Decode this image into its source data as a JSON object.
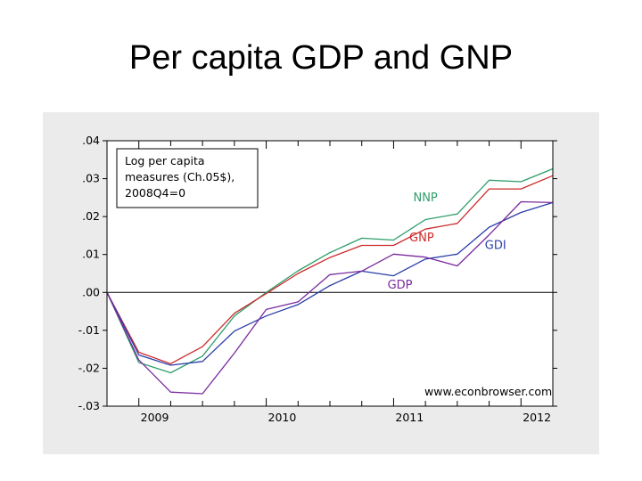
{
  "slide": {
    "title": "Per capita GDP and GNP"
  },
  "chart_data": {
    "type": "line",
    "title": "",
    "xlabel": "",
    "ylabel": "",
    "ylim": [
      -0.03,
      0.04
    ],
    "y_ticks": [
      0.04,
      0.03,
      0.02,
      0.01,
      0.0,
      -0.01,
      -0.02,
      -0.03
    ],
    "y_tick_labels": [
      ".04",
      ".03",
      ".02",
      ".01",
      ".00",
      "-.01",
      "-.02",
      "-.03"
    ],
    "x_ticks": [
      2009.0,
      2010.0,
      2011.0,
      2012.0
    ],
    "x_tick_labels": [
      "2009",
      "2010",
      "2011",
      "2012"
    ],
    "xlim": [
      2008.75,
      2012.25
    ],
    "grid": false,
    "legend_box": "top-left",
    "legend_lines": [
      "Log per capita",
      "measures (Ch.05$),",
      "2008Q4=0"
    ],
    "watermark": "www.econbrowser.com",
    "x": [
      "2008Q4",
      "2009Q1",
      "2009Q2",
      "2009Q3",
      "2009Q4",
      "2010Q1",
      "2010Q2",
      "2010Q3",
      "2010Q4",
      "2011Q1",
      "2011Q2",
      "2011Q3",
      "2011Q4",
      "2012Q1",
      "2012Q2"
    ],
    "series": [
      {
        "name": "NNP",
        "color": "#2e9e6a",
        "values": [
          0.0,
          -0.0185,
          -0.0212,
          -0.0168,
          -0.0062,
          0.0,
          0.0057,
          0.0105,
          0.0143,
          0.0138,
          0.0192,
          0.0207,
          0.0296,
          0.0292,
          0.0326
        ]
      },
      {
        "name": "GNP",
        "color": "#cc2b2b",
        "values": [
          0.0,
          -0.0158,
          -0.0188,
          -0.0143,
          -0.0055,
          -0.0003,
          0.005,
          0.0092,
          0.0124,
          0.0124,
          0.0167,
          0.0182,
          0.0273,
          0.0273,
          0.0308
        ]
      },
      {
        "name": "GDI",
        "color": "#2a3da8",
        "values": [
          0.0,
          -0.0165,
          -0.0192,
          -0.0182,
          -0.0102,
          -0.0062,
          -0.0032,
          0.0018,
          0.0056,
          0.0044,
          0.0088,
          0.0101,
          0.0172,
          0.0211,
          0.0237
        ]
      },
      {
        "name": "GDP",
        "color": "#7a2a9e",
        "values": [
          0.0,
          -0.0178,
          -0.0263,
          -0.0267,
          -0.016,
          -0.0045,
          -0.0025,
          0.0047,
          0.0056,
          0.0101,
          0.0093,
          0.007,
          0.0152,
          0.0239,
          0.0237
        ]
      }
    ]
  }
}
